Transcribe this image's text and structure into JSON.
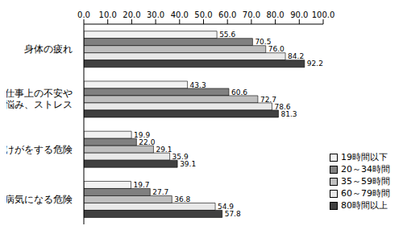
{
  "chart_data": {
    "type": "bar",
    "orientation": "horizontal",
    "data_labels": true,
    "grid": false,
    "legend": "lower right",
    "categories": [
      "身体の疲れ",
      "仕事上の不安や悩み、ストレス",
      "けがをする危険",
      "病気になる危険"
    ],
    "xlim": [
      0,
      100
    ],
    "xticks": [
      {
        "value": 0,
        "label": "0.0"
      },
      {
        "value": 10,
        "label": "10.0"
      },
      {
        "value": 20,
        "label": "20.0"
      },
      {
        "value": 30,
        "label": "30.0"
      },
      {
        "value": 40,
        "label": "40.0"
      },
      {
        "value": 50,
        "label": "50.0"
      },
      {
        "value": 60,
        "label": "60.0"
      },
      {
        "value": 70,
        "label": "70.0"
      },
      {
        "value": 80,
        "label": "80.0"
      },
      {
        "value": 90,
        "label": "90.0"
      },
      {
        "value": 100,
        "label": "100.0"
      }
    ],
    "series": [
      {
        "name": "19時間以下",
        "color": "#f2f2f2",
        "values": [
          55.6,
          43.3,
          19.9,
          19.7
        ],
        "value_labels": [
          "55.6",
          "43.3",
          "19.9",
          "19.7"
        ]
      },
      {
        "name": "20～34時間",
        "color": "#808080",
        "values": [
          70.5,
          60.6,
          22.0,
          27.7
        ],
        "value_labels": [
          "70.5",
          "60.6",
          "22.0",
          "27.7"
        ]
      },
      {
        "name": "35～59時間",
        "color": "#bfbfbf",
        "values": [
          76.0,
          72.7,
          29.1,
          36.8
        ],
        "value_labels": [
          "76.0",
          "72.7",
          "29.1",
          "36.8"
        ]
      },
      {
        "name": "60～79時間",
        "color": "#e8e8e8",
        "values": [
          84.2,
          78.6,
          35.9,
          54.9
        ],
        "value_labels": [
          "84.2",
          "78.6",
          "35.9",
          "54.9"
        ]
      },
      {
        "name": "80時間以上",
        "color": "#404040",
        "values": [
          92.2,
          81.3,
          39.1,
          57.8
        ],
        "value_labels": [
          "92.2",
          "81.3",
          "39.1",
          "57.8"
        ]
      }
    ]
  }
}
